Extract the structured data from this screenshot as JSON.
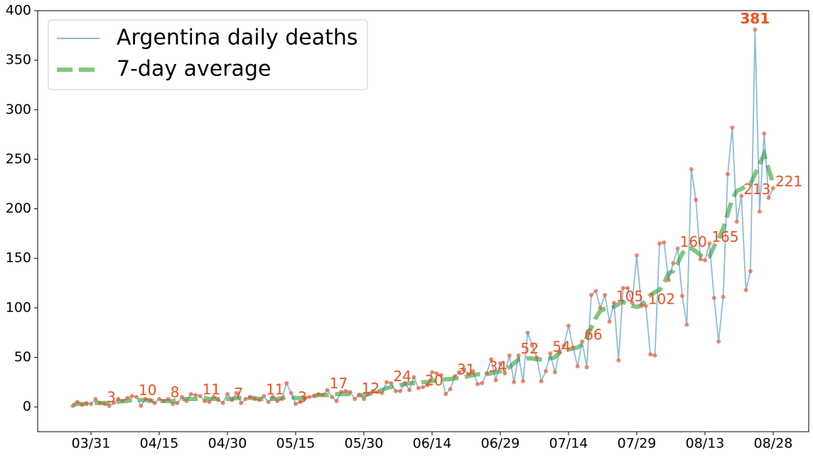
{
  "chart_data": {
    "type": "line",
    "categories": [
      null,
      null,
      null,
      null,
      "03/31",
      null,
      null,
      null,
      null,
      null,
      null,
      null,
      null,
      null,
      null,
      null,
      null,
      null,
      null,
      "04/15",
      null,
      null,
      null,
      null,
      null,
      null,
      null,
      null,
      null,
      null,
      null,
      null,
      null,
      null,
      "04/30",
      null,
      null,
      null,
      null,
      null,
      null,
      null,
      null,
      null,
      null,
      null,
      null,
      null,
      null,
      "05/15",
      null,
      null,
      null,
      null,
      null,
      null,
      null,
      null,
      null,
      null,
      null,
      null,
      null,
      null,
      "05/30",
      null,
      null,
      null,
      null,
      null,
      null,
      null,
      null,
      null,
      null,
      null,
      null,
      null,
      null,
      "06/14",
      null,
      null,
      null,
      null,
      null,
      null,
      null,
      null,
      null,
      null,
      null,
      null,
      null,
      null,
      "06/29",
      null,
      null,
      null,
      null,
      null,
      null,
      null,
      null,
      null,
      null,
      null,
      null,
      null,
      null,
      "07/14",
      null,
      null,
      null,
      null,
      null,
      null,
      null,
      null,
      null,
      null,
      null,
      null,
      null,
      null,
      "07/29",
      null,
      null,
      null,
      null,
      null,
      null,
      null,
      null,
      null,
      null,
      null,
      null,
      null,
      null,
      "08/13",
      null,
      null,
      null,
      null,
      null,
      null,
      null,
      null,
      null,
      null,
      null,
      null,
      null,
      null,
      "08/28"
    ],
    "series": [
      {
        "name": "Argentina daily deaths",
        "color": "#1f77b4",
        "marker_color": "#e8603c",
        "values": [
          1,
          5,
          2,
          4,
          3,
          8,
          4,
          3,
          1,
          4,
          8,
          6,
          9,
          11,
          10,
          1,
          8,
          7,
          4,
          8,
          6,
          8,
          3,
          4,
          10,
          6,
          13,
          12,
          11,
          6,
          5,
          10,
          7,
          4,
          13,
          7,
          14,
          4,
          8,
          10,
          8,
          7,
          11,
          5,
          10,
          6,
          8,
          24,
          14,
          3,
          5,
          9,
          10,
          11,
          13,
          12,
          17,
          10,
          6,
          15,
          16,
          15,
          8,
          12,
          8,
          13,
          16,
          15,
          14,
          25,
          24,
          16,
          16,
          24,
          17,
          30,
          19,
          20,
          22,
          35,
          34,
          32,
          13,
          18,
          31,
          35,
          38,
          33,
          36,
          23,
          24,
          34,
          48,
          27,
          44,
          34,
          52,
          25,
          52,
          26,
          75,
          62,
          50,
          26,
          36,
          54,
          35,
          55,
          62,
          82,
          60,
          41,
          66,
          40,
          113,
          117,
          100,
          113,
          86,
          105,
          47,
          120,
          120,
          105,
          153,
          103,
          102,
          53,
          52,
          165,
          166,
          128,
          145,
          160,
          112,
          83,
          240,
          209,
          149,
          148,
          165,
          110,
          66,
          111,
          235,
          282,
          187,
          213,
          118,
          137,
          381,
          197,
          276,
          211,
          221
        ],
        "value_labels": [
          null,
          null,
          null,
          null,
          null,
          null,
          null,
          "3",
          null,
          null,
          null,
          null,
          null,
          null,
          "10",
          null,
          null,
          null,
          null,
          null,
          null,
          "8",
          null,
          null,
          null,
          null,
          null,
          null,
          "11",
          null,
          null,
          null,
          null,
          null,
          null,
          "7",
          null,
          null,
          null,
          null,
          null,
          null,
          "11",
          null,
          null,
          null,
          null,
          null,
          null,
          "3",
          null,
          null,
          null,
          null,
          null,
          null,
          "17",
          null,
          null,
          null,
          null,
          null,
          null,
          "12",
          null,
          null,
          null,
          null,
          null,
          null,
          "24",
          null,
          null,
          null,
          null,
          null,
          null,
          "20",
          null,
          null,
          null,
          null,
          null,
          null,
          "31",
          null,
          null,
          null,
          null,
          null,
          null,
          "34",
          null,
          null,
          null,
          null,
          null,
          null,
          "52",
          null,
          null,
          null,
          null,
          null,
          null,
          "54",
          null,
          null,
          null,
          null,
          null,
          null,
          "66",
          null,
          null,
          null,
          null,
          null,
          null,
          "105",
          null,
          null,
          null,
          null,
          null,
          null,
          "102",
          null,
          null,
          null,
          null,
          null,
          null,
          "160",
          null,
          null,
          null,
          null,
          null,
          null,
          "165",
          null,
          null,
          null,
          null,
          null,
          null,
          "213",
          null,
          null,
          "381",
          null,
          null,
          null,
          "221"
        ]
      },
      {
        "name": "7-day average",
        "color": "#2ca02c",
        "dashed": true,
        "values": [
          2,
          3,
          3,
          3,
          3,
          4,
          4,
          4,
          4,
          5,
          5,
          6,
          6,
          7,
          7,
          7,
          7,
          6,
          6,
          6,
          6,
          6,
          6,
          7,
          8,
          8,
          8,
          8,
          9,
          9,
          8,
          8,
          8,
          8,
          8,
          8,
          9,
          9,
          9,
          9,
          9,
          8,
          8,
          8,
          8,
          8,
          9,
          10,
          10,
          9,
          9,
          9,
          10,
          11,
          12,
          12,
          12,
          13,
          13,
          13,
          13,
          13,
          12,
          12,
          12,
          13,
          14,
          15,
          17,
          19,
          20,
          21,
          22,
          23,
          24,
          24,
          24,
          25,
          25,
          26,
          27,
          27,
          28,
          28,
          29,
          29,
          30,
          31,
          32,
          33,
          33,
          33,
          34,
          35,
          36,
          38,
          40,
          44,
          48,
          48,
          49,
          49,
          48,
          48,
          48,
          49,
          50,
          55,
          57,
          58,
          59,
          60,
          63,
          70,
          80,
          90,
          97,
          99,
          100,
          101,
          104,
          106,
          104,
          102,
          101,
          102,
          108,
          113,
          116,
          118,
          125,
          135,
          137,
          145,
          155,
          160,
          160,
          157,
          153,
          150,
          152,
          162,
          170,
          180,
          195,
          210,
          218,
          220,
          223,
          225,
          235,
          245,
          255,
          240,
          225
        ]
      }
    ],
    "ylim": [
      -25,
      400
    ],
    "yticks": [
      0,
      50,
      100,
      150,
      200,
      250,
      300,
      350,
      400
    ],
    "legend": "upper left"
  }
}
